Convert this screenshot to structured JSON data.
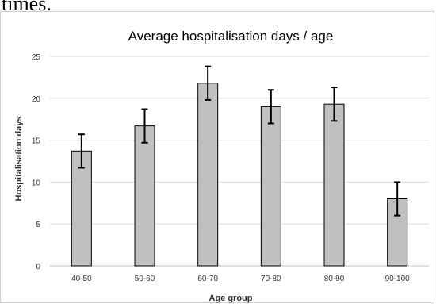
{
  "header": {
    "text": "times."
  },
  "chart_data": {
    "type": "bar",
    "title": "Average hospitalisation days / age",
    "xlabel": "Age group",
    "ylabel": "Hospitalisation  days",
    "categories": [
      "40-50",
      "50-60",
      "60-70",
      "70-80",
      "80-90",
      "90-100"
    ],
    "values": [
      13.7,
      16.7,
      21.8,
      19.0,
      19.3,
      8.0
    ],
    "error": [
      2.0,
      2.0,
      2.0,
      2.0,
      2.0,
      2.0
    ],
    "ylim": [
      0,
      25
    ],
    "yticks": [
      0,
      5,
      10,
      15,
      20,
      25
    ],
    "grid": true,
    "legend": "none",
    "colors": {
      "bar_fill": "#c0c0c0",
      "bar_stroke": "#000000",
      "grid": "#d9d9d9",
      "error": "#000000"
    }
  }
}
